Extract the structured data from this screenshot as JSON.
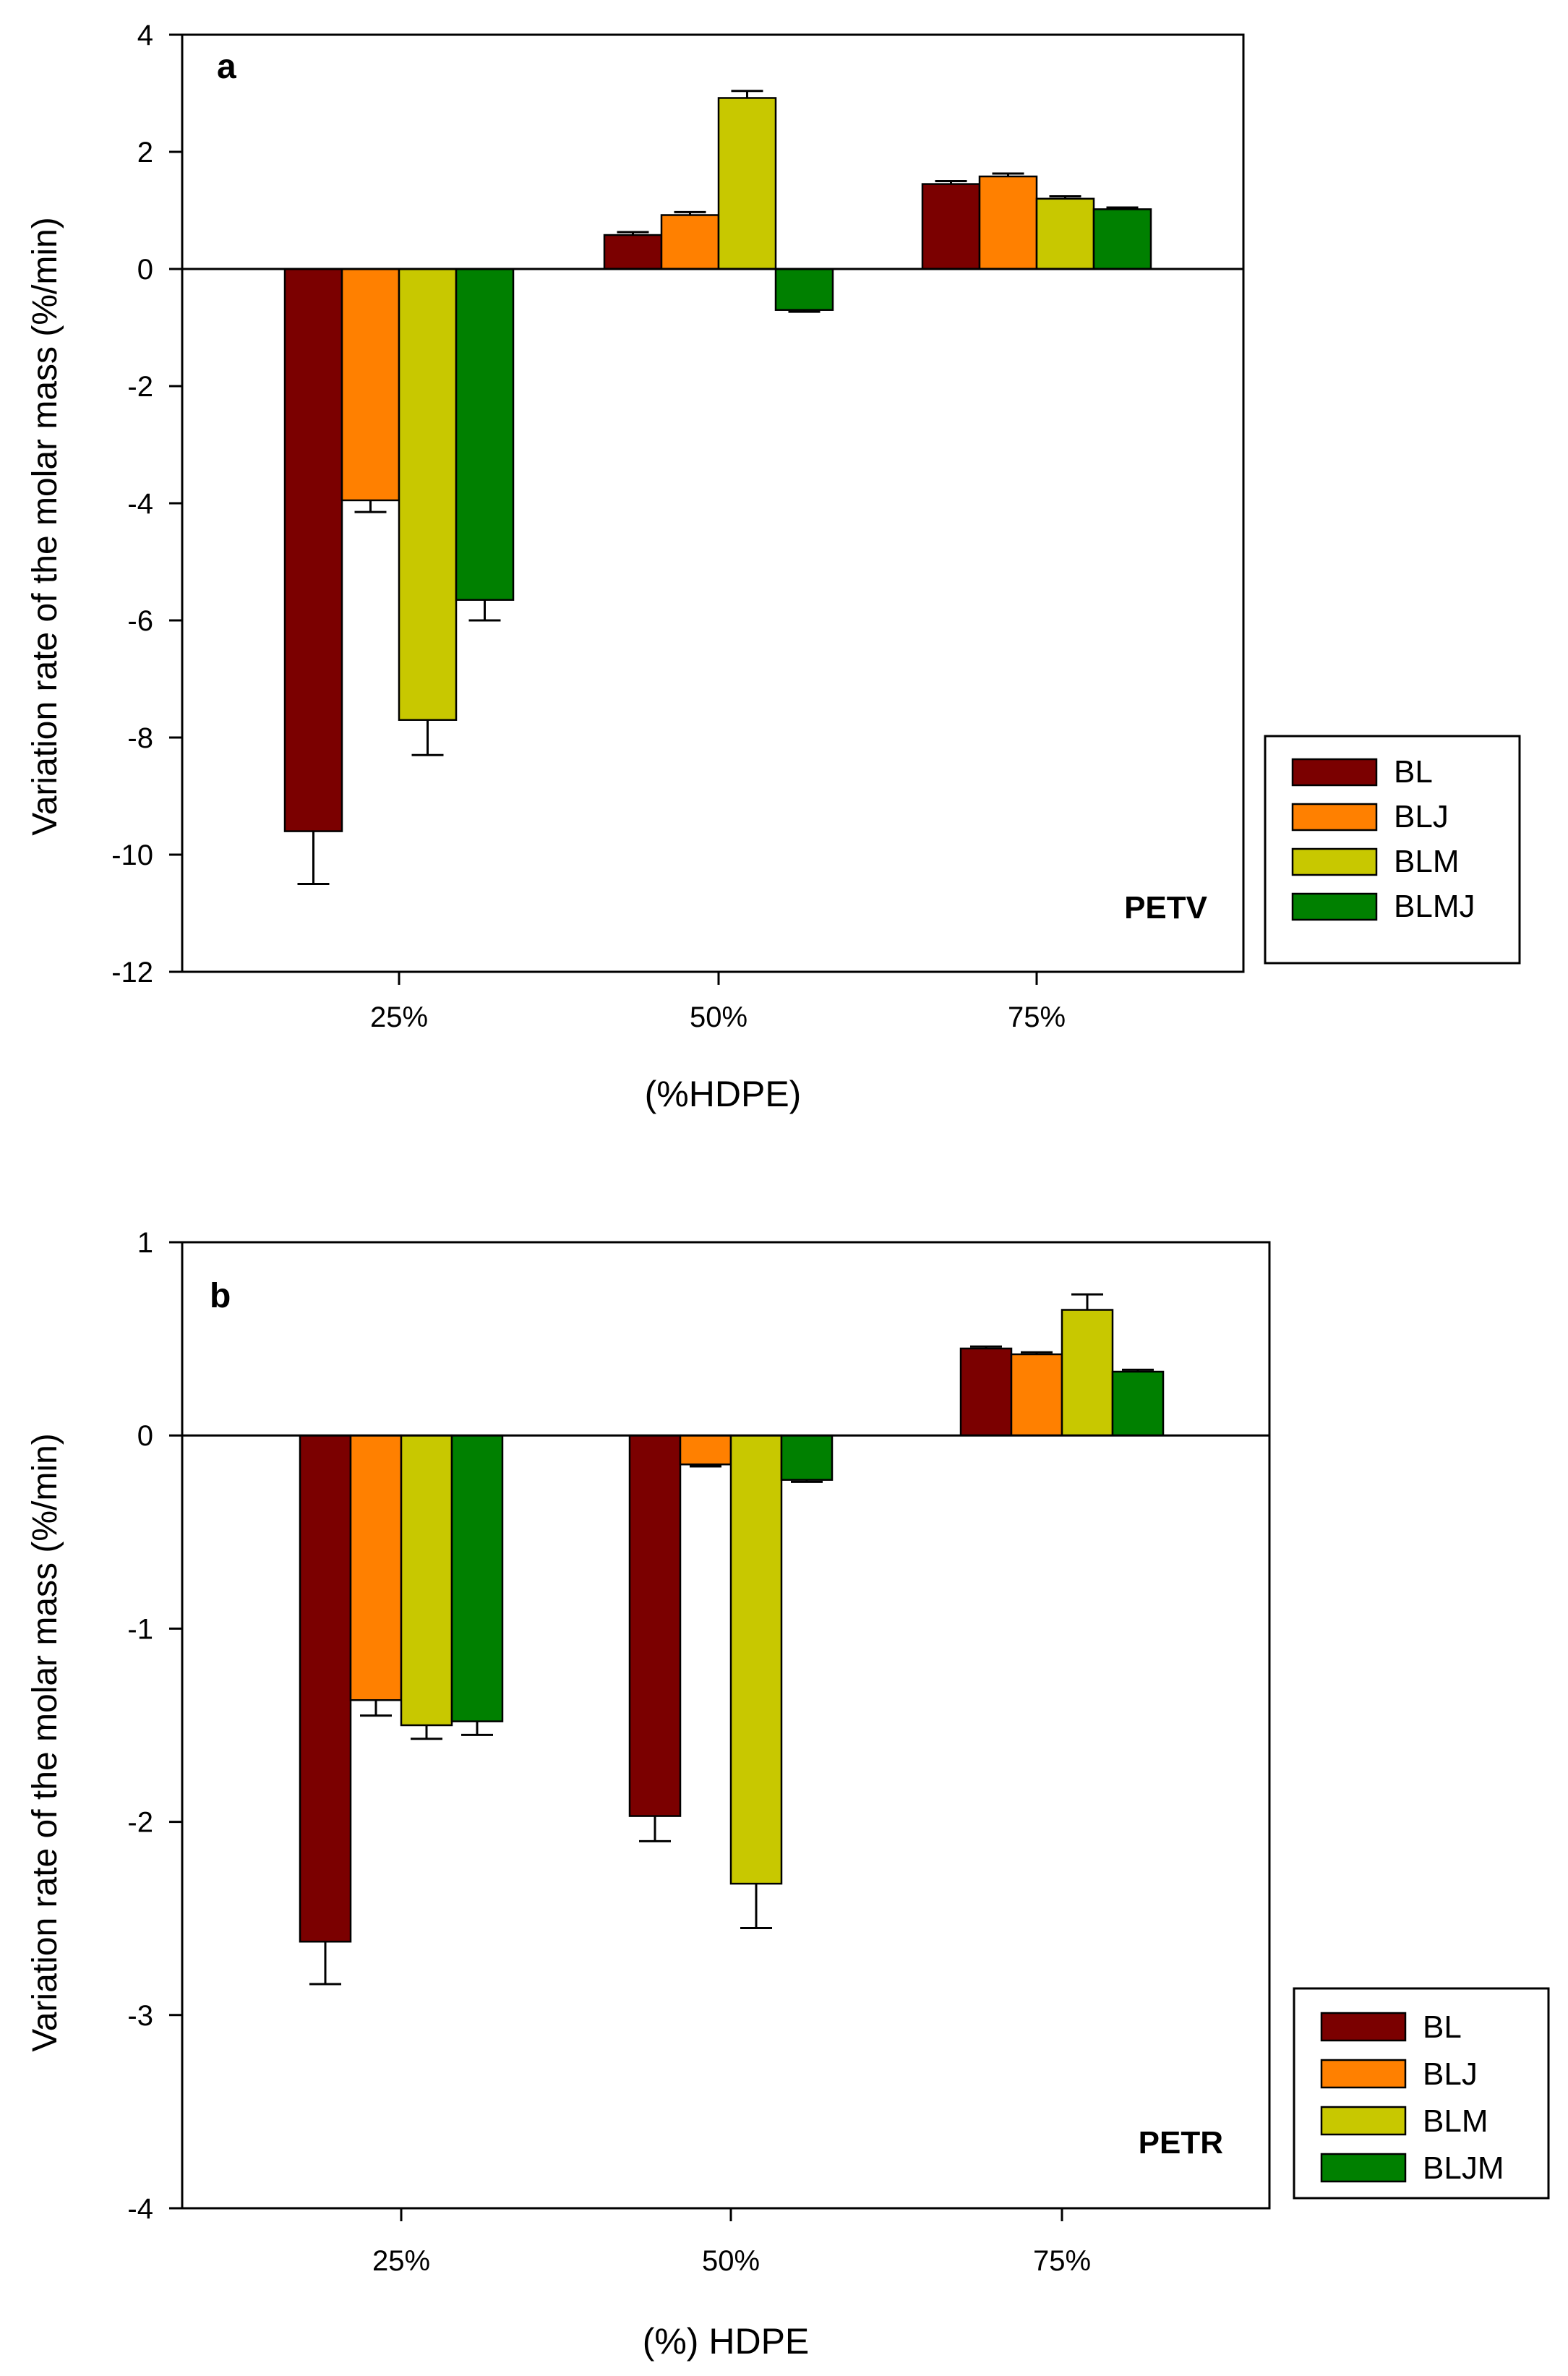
{
  "chart_data": [
    {
      "type": "bar",
      "panel_label": "a",
      "annotation": "PETV",
      "categories": [
        "25%",
        "50%",
        "75%"
      ],
      "xlabel": "(%HDPE)",
      "ylabel": "Variation rate of the molar mass (%/min)",
      "ylim": [
        -12,
        4
      ],
      "yticks": [
        4,
        2,
        0,
        -2,
        -4,
        -6,
        -8,
        -10,
        -12
      ],
      "ytick_labels": [
        "4",
        "2",
        "0",
        "-2",
        "-4",
        "-6",
        "-8",
        "-10",
        "-12"
      ],
      "legend_position": "right",
      "series": [
        {
          "name": "BL",
          "color": "#7b0000",
          "values": [
            -9.6,
            0.58,
            1.45
          ],
          "errors": [
            0.9,
            0.05,
            0.05
          ]
        },
        {
          "name": "BLJ",
          "color": "#ff8000",
          "values": [
            -3.95,
            0.92,
            1.58
          ],
          "errors": [
            0.2,
            0.05,
            0.05
          ]
        },
        {
          "name": "BLM",
          "color": "#c8c800",
          "values": [
            -7.7,
            2.92,
            1.2
          ],
          "errors": [
            0.6,
            0.12,
            0.04
          ]
        },
        {
          "name": "BLMJ",
          "color": "#008000",
          "values": [
            -5.65,
            -0.7,
            1.02
          ],
          "errors": [
            0.35,
            0.03,
            0.03
          ]
        }
      ]
    },
    {
      "type": "bar",
      "panel_label": "b",
      "annotation": "PETR",
      "categories": [
        "25%",
        "50%",
        "75%"
      ],
      "xlabel": "(%) HDPE",
      "ylabel": "Variation rate of the molar mass   (%/min)",
      "ylim": [
        -4,
        1
      ],
      "yticks": [
        1,
        0,
        -1,
        -2,
        -3,
        -4
      ],
      "ytick_labels": [
        "1",
        "0",
        "-1",
        "-2",
        "-3",
        "-4"
      ],
      "legend_position": "right",
      "series": [
        {
          "name": "BL",
          "color": "#7b0000",
          "values": [
            -2.62,
            -1.97,
            0.45
          ],
          "errors": [
            0.22,
            0.13,
            0.01
          ]
        },
        {
          "name": "BLJ",
          "color": "#ff8000",
          "values": [
            -1.37,
            -0.15,
            0.42
          ],
          "errors": [
            0.08,
            0.01,
            0.01
          ]
        },
        {
          "name": "BLM",
          "color": "#c8c800",
          "values": [
            -1.5,
            -2.32,
            0.65
          ],
          "errors": [
            0.07,
            0.23,
            0.08
          ]
        },
        {
          "name": "BLJM",
          "color": "#008000",
          "values": [
            -1.48,
            -0.23,
            0.33
          ],
          "errors": [
            0.07,
            0.01,
            0.01
          ]
        }
      ]
    }
  ]
}
